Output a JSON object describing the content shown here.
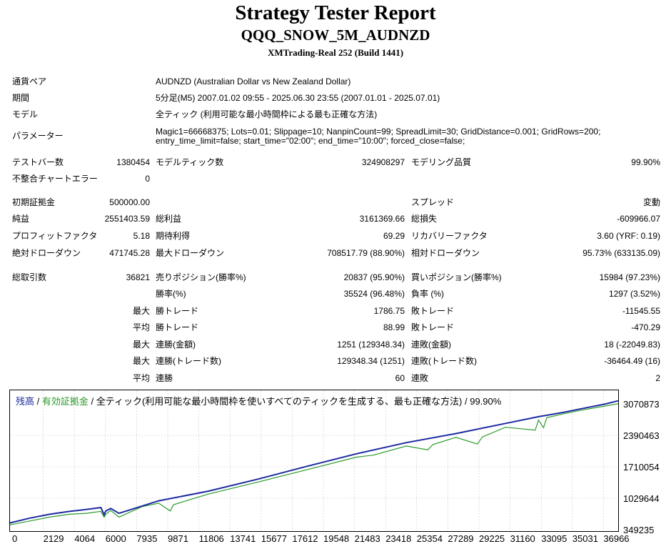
{
  "header": {
    "title": "Strategy Tester Report",
    "ea_name": "QQQ_SNOW_5M_AUDNZD",
    "server": "XMTrading-Real 252 (Build 1441)"
  },
  "info": {
    "symbol_label": "通貨ペア",
    "symbol": "AUDNZD (Australian Dollar vs New Zealand Dollar)",
    "period_label": "期間",
    "period": "5分足(M5) 2007.01.02 09:55 - 2025.06.30 23:55 (2007.01.01 - 2025.07.01)",
    "model_label": "モデル",
    "model": "全ティック (利用可能な最小時間枠による最も正確な方法)",
    "params_label": "パラメーター",
    "params_line1": "Magic1=66668375; Lots=0.01; Slippage=10; NanpinCount=99; SpreadLimit=30; GridDistance=0.001; GridRows=200;",
    "params_line2": "entry_time_limit=false; start_time=\"02:00\"; end_time=\"10:00\"; forced_close=false;"
  },
  "test": {
    "bars_label": "テストバー数",
    "bars": "1380454",
    "ticks_label": "モデルティック数",
    "ticks": "324908297",
    "quality_label": "モデリング品質",
    "quality": "99.90%",
    "errors_label": "不整合チャートエラー",
    "errors": "0"
  },
  "stats": {
    "deposit_label": "初期証拠金",
    "deposit": "500000.00",
    "spread_label": "スプレッド",
    "spread": "変動",
    "net_label": "純益",
    "net": "2551403.59",
    "gross_profit_label": "総利益",
    "gross_profit": "3161369.66",
    "gross_loss_label": "総損失",
    "gross_loss": "-609966.07",
    "pf_label": "プロフィットファクタ",
    "pf": "5.18",
    "expected_label": "期待利得",
    "expected": "69.29",
    "recovery_label": "リカバリーファクタ",
    "recovery": "3.60 (YRF: 0.19)",
    "abs_dd_label": "絶対ドローダウン",
    "abs_dd": "471745.28",
    "max_dd_label": "最大ドローダウン",
    "max_dd": "708517.79 (88.90%)",
    "rel_dd_label": "相対ドローダウン",
    "rel_dd": "95.73% (633135.09)"
  },
  "trades": {
    "total_label": "総取引数",
    "total": "36821",
    "short_label": "売りポジション(勝率%)",
    "short": "20837 (95.90%)",
    "long_label": "買いポジション(勝率%)",
    "long": "15984 (97.23%)",
    "win_label": "勝率(%)",
    "win": "35524 (96.48%)",
    "loss_label": "負率 (%)",
    "loss": "1297 (3.52%)",
    "max": "最大",
    "avg": "平均",
    "largest_win_label": "勝トレード",
    "largest_win": "1786.75",
    "largest_loss_label": "敗トレード",
    "largest_loss": "-11545.55",
    "avg_win_label": "勝トレード",
    "avg_win": "88.99",
    "avg_loss_label": "敗トレード",
    "avg_loss": "-470.29",
    "max_cons_wins_label": "連勝(金額)",
    "max_cons_wins": "1251 (129348.34)",
    "max_cons_losses_label": "連敗(金額)",
    "max_cons_losses": "18 (-22049.83)",
    "max_cons_profit_label": "連勝(トレード数)",
    "max_cons_profit": "129348.34 (1251)",
    "max_cons_loss_label": "連敗(トレード数)",
    "max_cons_loss": "-36464.49 (16)",
    "avg_cons_wins_label": "連勝",
    "avg_cons_wins": "60",
    "avg_cons_losses_label": "連敗",
    "avg_cons_losses": "2"
  },
  "chart_legend": {
    "balance": "残高",
    "sep1": " / ",
    "equity": "有効証拠金",
    "sep2": " / ",
    "rest": "全ティック(利用可能な最小時間枠を使いすべてのティックを生成する、最も正確な方法) / 99.90%"
  },
  "chart_data": {
    "type": "line",
    "x_ticks": [
      "0",
      "2129",
      "4064",
      "6000",
      "7935",
      "9871",
      "11806",
      "13741",
      "15677",
      "17612",
      "19548",
      "21483",
      "23418",
      "25354",
      "27289",
      "29225",
      "31160",
      "33095",
      "35031",
      "36966"
    ],
    "y_ticks": [
      "3070873",
      "2390463",
      "1710054",
      "1029644",
      "349235"
    ],
    "xlim": [
      0,
      36821
    ],
    "ylim": [
      349235,
      3070873
    ],
    "colors": {
      "balance": "#1c2aa0",
      "equity": "#2a9a2a",
      "grid": "#c8c8c8"
    },
    "series": [
      {
        "name": "残高",
        "x": [
          0,
          1200,
          2400,
          3600,
          4600,
          5500,
          5700,
          5800,
          6100,
          6600,
          9000,
          12000,
          15000,
          18000,
          21000,
          24000,
          27000,
          30000,
          32000,
          33500,
          34500,
          36000,
          36821
        ],
        "y": [
          520000,
          620000,
          700000,
          760000,
          800000,
          840000,
          690000,
          770000,
          820000,
          720000,
          980000,
          1180000,
          1430000,
          1700000,
          1960000,
          2190000,
          2380000,
          2590000,
          2730000,
          2820000,
          2890000,
          2990000,
          3060000
        ]
      },
      {
        "name": "有効証拠金",
        "x": [
          0,
          1200,
          2400,
          3600,
          4600,
          5500,
          5700,
          5800,
          6100,
          6600,
          8000,
          9000,
          9700,
          9900,
          12000,
          15000,
          18000,
          21000,
          22000,
          24000,
          25300,
          25600,
          27000,
          28300,
          28600,
          30000,
          31800,
          32000,
          32300,
          32500,
          33500,
          34500,
          36000,
          36821
        ],
        "y": [
          480000,
          560000,
          640000,
          700000,
          720000,
          760000,
          640000,
          700000,
          780000,
          640000,
          860000,
          930000,
          770000,
          900000,
          1120000,
          1370000,
          1630000,
          1890000,
          1930000,
          2120000,
          2040000,
          2150000,
          2300000,
          2160000,
          2310000,
          2510000,
          2450000,
          2660000,
          2500000,
          2710000,
          2790000,
          2860000,
          2950000,
          3000000
        ]
      }
    ]
  }
}
